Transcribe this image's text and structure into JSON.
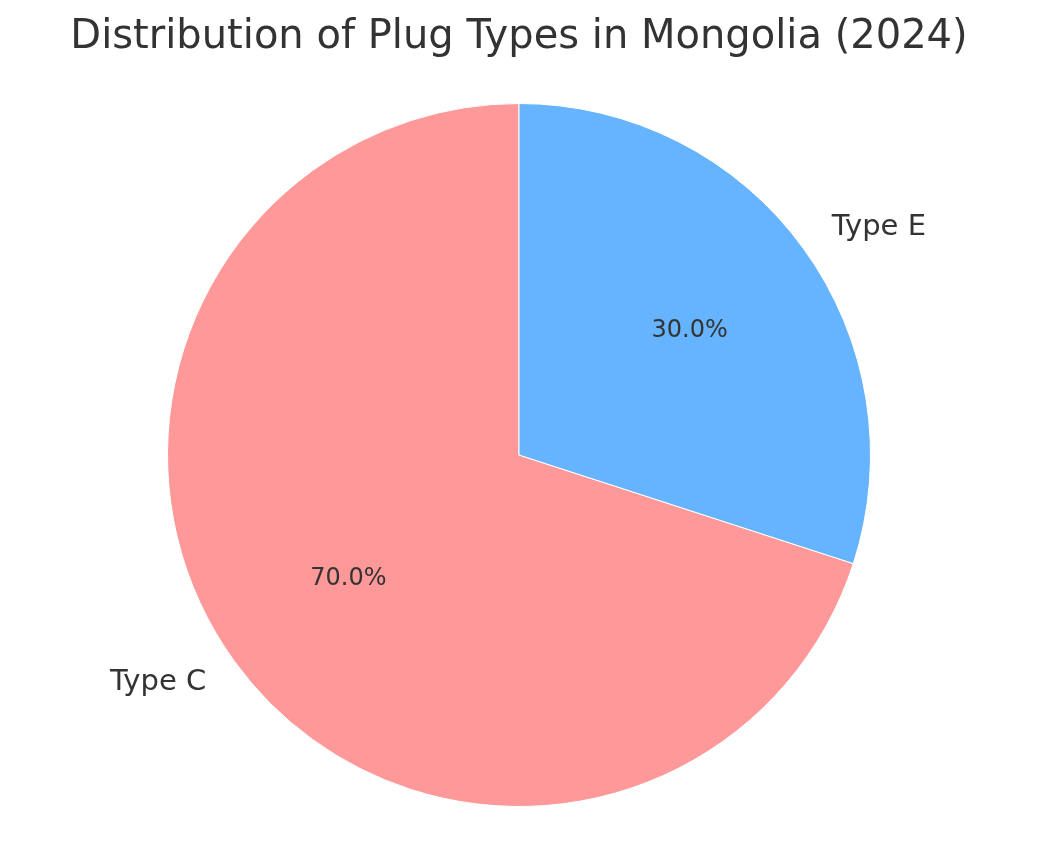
{
  "chart_data": {
    "type": "pie",
    "title": "Distribution of Plug Types in Mongolia (2024)",
    "categories": [
      "Type C",
      "Type E"
    ],
    "values": [
      70,
      30
    ],
    "value_labels": [
      "70.0%",
      "30.0%"
    ],
    "data_labels": true,
    "colors": [
      "#ff9999",
      "#66b3ff"
    ]
  }
}
